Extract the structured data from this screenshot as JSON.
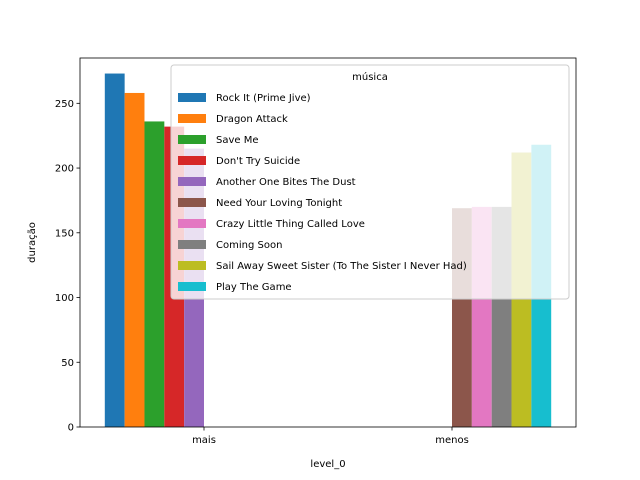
{
  "chart_data": {
    "type": "bar",
    "xlabel": "level_0",
    "ylabel": "duração",
    "categories": [
      "mais",
      "menos"
    ],
    "ylim": [
      0,
      285
    ],
    "yticks": [
      0,
      50,
      100,
      150,
      200,
      250
    ],
    "legend": {
      "title": "música",
      "placement": "top-right"
    },
    "series": [
      {
        "name": "Rock It (Prime Jive)",
        "color": "#1f77b4",
        "values": [
          273,
          null
        ]
      },
      {
        "name": "Dragon Attack",
        "color": "#ff7f0e",
        "values": [
          258,
          null
        ]
      },
      {
        "name": "Save Me",
        "color": "#2ca02c",
        "values": [
          236,
          null
        ]
      },
      {
        "name": "Don't Try Suicide",
        "color": "#d62728",
        "values": [
          232,
          null
        ]
      },
      {
        "name": "Another One Bites The Dust",
        "color": "#9467bd",
        "values": [
          215,
          null
        ]
      },
      {
        "name": "Need Your Loving Tonight",
        "color": "#8c564b",
        "values": [
          null,
          169
        ]
      },
      {
        "name": "Crazy Little Thing Called Love",
        "color": "#e377c2",
        "values": [
          null,
          170
        ]
      },
      {
        "name": "Coming Soon",
        "color": "#7f7f7f",
        "values": [
          null,
          170
        ]
      },
      {
        "name": "Sail Away Sweet Sister (To The Sister I Never Had)",
        "color": "#bcbd22",
        "values": [
          null,
          212
        ]
      },
      {
        "name": "Play The Game",
        "color": "#17becf",
        "values": [
          null,
          218
        ]
      }
    ]
  }
}
